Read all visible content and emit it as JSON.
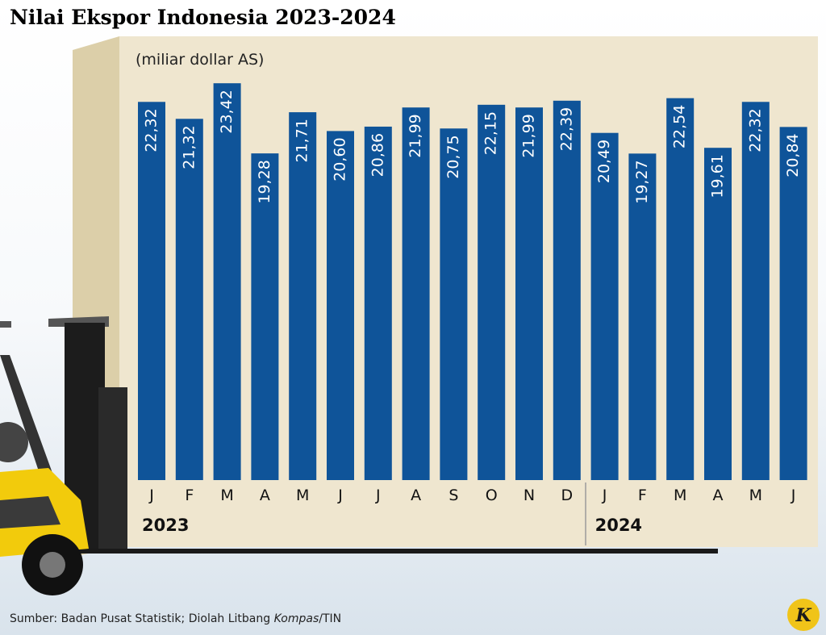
{
  "chart_data": {
    "type": "bar",
    "title": "Nilai Ekspor Indonesia 2023-2024",
    "unit_label": "(miliar dollar AS)",
    "groups": [
      {
        "name": "2023",
        "categories": [
          "J",
          "F",
          "M",
          "A",
          "M",
          "J",
          "J",
          "A",
          "S",
          "O",
          "N",
          "D"
        ]
      },
      {
        "name": "2024",
        "categories": [
          "J",
          "F",
          "M",
          "A",
          "M",
          "J"
        ]
      }
    ],
    "values": [
      22.32,
      21.32,
      23.42,
      19.28,
      21.71,
      20.6,
      20.86,
      21.99,
      20.75,
      22.15,
      21.99,
      22.39,
      20.49,
      19.27,
      22.54,
      19.61,
      22.32,
      20.84
    ],
    "value_labels": [
      "22,32",
      "21,32",
      "23,42",
      "19,28",
      "21,71",
      "20,60",
      "20,86",
      "21,99",
      "20,75",
      "22,15",
      "21,99",
      "22,39",
      "20,49",
      "19,27",
      "22,54",
      "19,61",
      "22,32",
      "20,84"
    ],
    "color": "#0f5499",
    "source": [
      "Sumber: Badan Pusat Statistik; Diolah Litbang ",
      "Kompas",
      "/TIN"
    ]
  }
}
